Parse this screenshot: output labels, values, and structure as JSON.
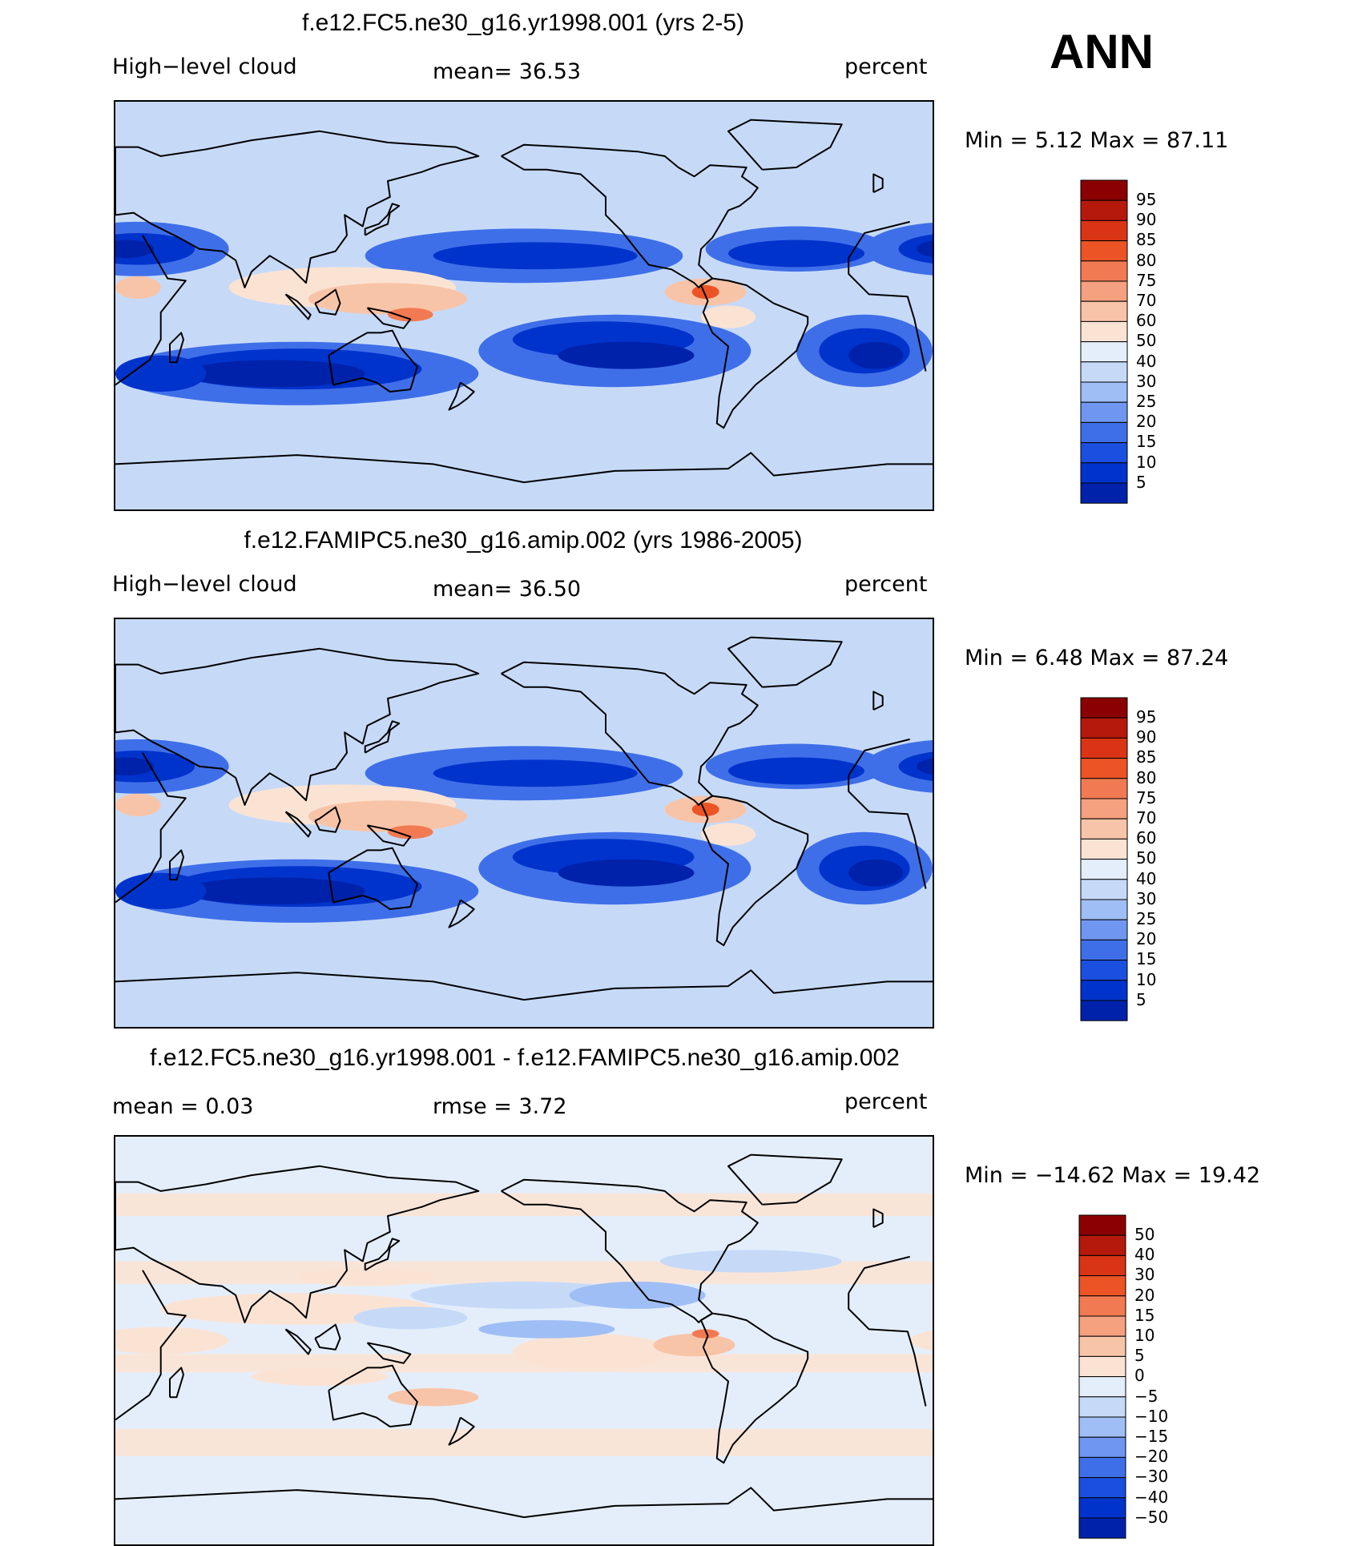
{
  "season": "ANN",
  "colors": {
    "abs": [
      "#000080",
      "#0022aa",
      "#0033cc",
      "#1a4fe0",
      "#3f6fe8",
      "#6f96f0",
      "#9fbef5",
      "#c6daf8",
      "#e4eefb",
      "#fbe3d4",
      "#f8c4a8",
      "#f5a07e",
      "#f27a52",
      "#ec5425",
      "#d93415",
      "#b5190c",
      "#8b0000"
    ],
    "diff": [
      "#000080",
      "#0022aa",
      "#0033cc",
      "#1a4fe0",
      "#3f6fe8",
      "#6f96f0",
      "#9fbef5",
      "#c6daf8",
      "#e4eefb",
      "#fbe3d4",
      "#f8c4a8",
      "#f5a07e",
      "#f27a52",
      "#ec5425",
      "#d93415",
      "#b5190c",
      "#8b0000"
    ]
  },
  "panels": [
    {
      "title": "f.e12.FC5.ne30_g16.yr1998.001 (yrs 2-5)",
      "left_label": "High−level cloud",
      "mid_label": "mean=   36.53",
      "right_label": "percent",
      "stats": "Min =    5.12 Max =   87.11",
      "colorbar_levels": [
        "95",
        "90",
        "85",
        "80",
        "75",
        "70",
        "60",
        "50",
        "40",
        "30",
        "25",
        "20",
        "15",
        "10",
        "5"
      ]
    },
    {
      "title": "f.e12.FAMIPC5.ne30_g16.amip.002 (yrs 1986-2005)",
      "left_label": "High−level cloud",
      "mid_label": "mean=   36.50",
      "right_label": "percent",
      "stats": "Min =    6.48 Max =   87.24",
      "colorbar_levels": [
        "95",
        "90",
        "85",
        "80",
        "75",
        "70",
        "60",
        "50",
        "40",
        "30",
        "25",
        "20",
        "15",
        "10",
        "5"
      ]
    },
    {
      "title": "f.e12.FC5.ne30_g16.yr1998.001 - f.e12.FAMIPC5.ne30_g16.amip.002",
      "left_label": "mean =     0.03",
      "mid_label": "rmse =     3.72",
      "right_label": "percent",
      "stats": "Min = −14.62 Max =   19.42",
      "colorbar_levels": [
        "50",
        "40",
        "30",
        "20",
        "15",
        "10",
        "5",
        "0",
        "−5",
        "−10",
        "−15",
        "−20",
        "−30",
        "−40",
        "−50"
      ]
    }
  ],
  "chart_data": [
    {
      "type": "heatmap",
      "title": "f.e12.FC5.ne30_g16.yr1998.001 (yrs 2-5)",
      "variable": "High-level cloud",
      "units": "percent",
      "mean": 36.53,
      "min": 5.12,
      "max": 87.11,
      "contour_levels": [
        5,
        10,
        15,
        20,
        25,
        30,
        40,
        50,
        60,
        70,
        75,
        80,
        85,
        90,
        95
      ]
    },
    {
      "type": "heatmap",
      "title": "f.e12.FAMIPC5.ne30_g16.amip.002 (yrs 1986-2005)",
      "variable": "High-level cloud",
      "units": "percent",
      "mean": 36.5,
      "min": 6.48,
      "max": 87.24,
      "contour_levels": [
        5,
        10,
        15,
        20,
        25,
        30,
        40,
        50,
        60,
        70,
        75,
        80,
        85,
        90,
        95
      ]
    },
    {
      "type": "heatmap",
      "title": "f.e12.FC5.ne30_g16.yr1998.001 - f.e12.FAMIPC5.ne30_g16.amip.002",
      "units": "percent",
      "mean": 0.03,
      "rmse": 3.72,
      "min": -14.62,
      "max": 19.42,
      "contour_levels": [
        -50,
        -40,
        -30,
        -20,
        -15,
        -10,
        -5,
        0,
        5,
        10,
        15,
        20,
        30,
        40,
        50
      ]
    }
  ]
}
